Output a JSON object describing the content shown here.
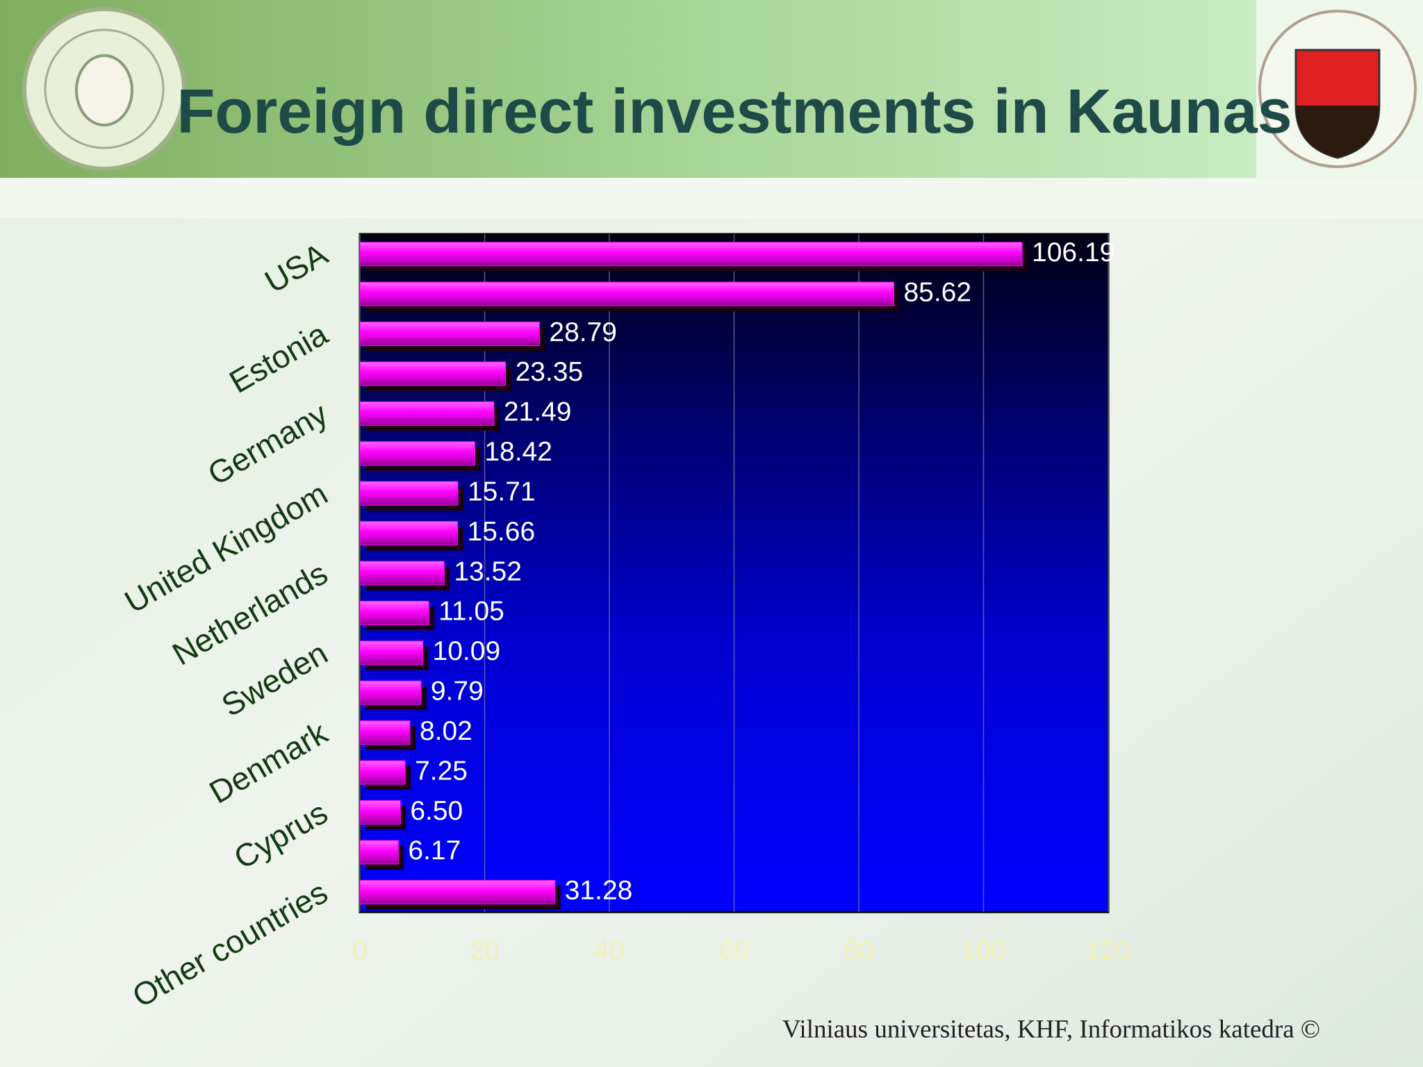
{
  "title": "Foreign direct investments in Kaunas",
  "footer": "Vilniaus universitetas, KHF, Informatikos katedra ©",
  "chart_data": {
    "type": "hbar",
    "categories": [
      "USA",
      null,
      "Estonia",
      null,
      "Germany",
      null,
      "United Kingdom",
      null,
      "Netherlands",
      null,
      "Sweden",
      null,
      "Denmark",
      null,
      "Cyprus",
      null,
      "Other countries"
    ],
    "values": [
      106.19,
      85.62,
      28.79,
      23.35,
      21.49,
      18.42,
      15.71,
      15.66,
      13.52,
      11.05,
      10.09,
      9.79,
      8.02,
      7.25,
      6.5,
      6.17,
      31.28
    ],
    "value_labels": [
      "106.19",
      "85.62",
      "28.79",
      "23.35",
      "21.49",
      "18.42",
      "15.71",
      "15.66",
      "13.52",
      "11.05",
      "10.09",
      "9.79",
      "8.02",
      "7.25",
      "6.50",
      "6.17",
      "31.28"
    ],
    "color": "#ff00ff",
    "xlim": [
      0,
      120
    ],
    "xticks": [
      0,
      20,
      40,
      60,
      80,
      100,
      120
    ],
    "grid": true
  }
}
